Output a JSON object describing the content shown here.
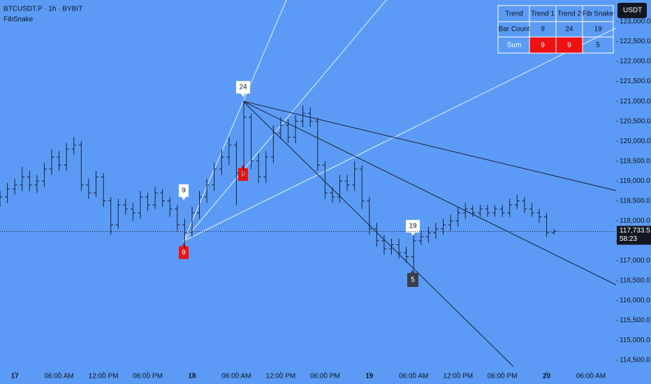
{
  "chart_data": {
    "type": "ohlc",
    "title": "BTCUSDT.P · 1h · BYBIT",
    "subtitle": "FibSnake",
    "y_axis_label": "USDT",
    "color": "#1c2030",
    "open": [
      118500,
      118600,
      118800,
      118900,
      119100,
      118900,
      119000,
      119300,
      119600,
      119400,
      119800,
      119900,
      118900,
      118700,
      119100,
      118500,
      117900,
      118400,
      118300,
      118200,
      118600,
      118400,
      118700,
      118500,
      118300,
      117900,
      117700,
      118200,
      118600,
      118900,
      119300,
      119600,
      119900,
      119200,
      120600,
      119500,
      119100,
      119600,
      120200,
      120400,
      120100,
      120500,
      120700,
      120500,
      119400,
      118700,
      118600,
      119000,
      118900,
      119300,
      118500,
      117800,
      117500,
      117300,
      117400,
      117200,
      117100,
      117500,
      117600,
      117700,
      117800,
      117900,
      118000,
      118200,
      118300,
      118200,
      118300,
      118200,
      118300,
      118200,
      118400,
      118500,
      118300,
      118200,
      118100,
      117700
    ],
    "high": [
      118750,
      118950,
      119050,
      119350,
      119250,
      119150,
      119450,
      119800,
      119750,
      119950,
      120100,
      120000,
      119050,
      119250,
      119200,
      118600,
      118550,
      118550,
      118450,
      118750,
      118700,
      118850,
      118800,
      118600,
      118400,
      118050,
      118350,
      118750,
      119050,
      119450,
      119800,
      120100,
      120000,
      121000,
      120700,
      119700,
      119750,
      120400,
      120600,
      120550,
      120650,
      120900,
      120850,
      120600,
      119500,
      118850,
      119150,
      119150,
      119500,
      119400,
      118600,
      117950,
      117650,
      117550,
      117550,
      117350,
      117650,
      117750,
      117850,
      117950,
      118050,
      118150,
      118350,
      118450,
      118400,
      118400,
      118400,
      118400,
      118400,
      118550,
      118650,
      118600,
      118450,
      118300,
      118200,
      117800
    ],
    "low": [
      118350,
      118450,
      118650,
      118750,
      118750,
      118700,
      118850,
      119150,
      119250,
      119250,
      119650,
      118750,
      118550,
      118600,
      118350,
      117650,
      117800,
      118150,
      118000,
      118050,
      118250,
      118300,
      118350,
      118100,
      117750,
      117300,
      117600,
      118050,
      118450,
      118750,
      119150,
      119400,
      118400,
      119050,
      119300,
      118950,
      118950,
      119450,
      120050,
      119950,
      119950,
      120350,
      120350,
      119250,
      118550,
      118450,
      118450,
      118750,
      118750,
      118300,
      117650,
      117350,
      117150,
      117150,
      117050,
      116950,
      116800,
      117400,
      117450,
      117550,
      117650,
      117750,
      117850,
      118050,
      118100,
      118100,
      118100,
      118100,
      118100,
      118100,
      118300,
      118200,
      118100,
      117950,
      117600,
      117650
    ],
    "close": [
      118600,
      118800,
      118900,
      119100,
      118900,
      119000,
      119300,
      119600,
      119400,
      119800,
      119900,
      118900,
      118700,
      119100,
      118500,
      117900,
      118400,
      118300,
      118200,
      118600,
      118400,
      118700,
      118500,
      118300,
      117900,
      117700,
      118200,
      118600,
      118900,
      119300,
      119600,
      119900,
      119200,
      120600,
      119500,
      119100,
      119600,
      120200,
      120400,
      120100,
      120500,
      120700,
      120500,
      119400,
      118700,
      118600,
      119000,
      118900,
      119300,
      118500,
      117800,
      117500,
      117300,
      117400,
      117200,
      117100,
      117500,
      117600,
      117700,
      117800,
      117900,
      118000,
      118200,
      118300,
      118200,
      118300,
      118200,
      118300,
      118200,
      118400,
      118500,
      118300,
      118200,
      118100,
      117700,
      117733.5
    ],
    "xlim": [
      0,
      83.4
    ],
    "xticks": [
      {
        "value": 2,
        "label": "17"
      },
      {
        "value": 8,
        "label": "06:00 AM"
      },
      {
        "value": 14,
        "label": "12:00 PM"
      },
      {
        "value": 20,
        "label": "06:00 PM"
      },
      {
        "value": 26,
        "label": "18"
      },
      {
        "value": 32,
        "label": "06:00 AM"
      },
      {
        "value": 38,
        "label": "12:00 PM"
      },
      {
        "value": 44,
        "label": "06:00 PM"
      },
      {
        "value": 50,
        "label": "19"
      },
      {
        "value": 56,
        "label": "06:00 AM"
      },
      {
        "value": 62,
        "label": "12:00 PM"
      },
      {
        "value": 68,
        "label": "06:00 PM"
      },
      {
        "value": 74,
        "label": "20"
      },
      {
        "value": 80,
        "label": "06:00 AM"
      }
    ],
    "ylim": [
      114220,
      123543
    ],
    "yticks": [
      {
        "value": 114500,
        "label": "114,500.0"
      },
      {
        "value": 115000,
        "label": "115,000.0"
      },
      {
        "value": 115500,
        "label": "115,500.0"
      },
      {
        "value": 116000,
        "label": "116,000.0"
      },
      {
        "value": 116500,
        "label": "116,500.0"
      },
      {
        "value": 117000,
        "label": "117,000.0"
      },
      {
        "value": 117500,
        "label": "117,500.0"
      },
      {
        "value": 118000,
        "label": "118,000.0"
      },
      {
        "value": 118500,
        "label": "118,500.0"
      },
      {
        "value": 119000,
        "label": "119,000.0"
      },
      {
        "value": 119500,
        "label": "119,500.0"
      },
      {
        "value": 120000,
        "label": "120,000.0"
      },
      {
        "value": 120500,
        "label": "120,500.0"
      },
      {
        "value": 121000,
        "label": "121,000.0"
      },
      {
        "value": 121500,
        "label": "121,500.0"
      },
      {
        "value": 122000,
        "label": "122,000.0"
      },
      {
        "value": 122500,
        "label": "122,500.0"
      },
      {
        "value": 123000,
        "label": "123,000.0"
      }
    ],
    "last_price": {
      "value": 117733.5,
      "label": "117,733.5"
    },
    "countdown": "58:23",
    "annotations": [
      "9",
      "9",
      "24",
      "9",
      "19",
      "5"
    ],
    "table": {
      "header": [
        "Trend",
        "Trend 1",
        "Trend 2",
        "Fib Snake"
      ],
      "rows": [
        [
          "Bar Count",
          9,
          24,
          19
        ],
        [
          "Sum",
          9,
          9,
          5
        ]
      ]
    }
  }
}
